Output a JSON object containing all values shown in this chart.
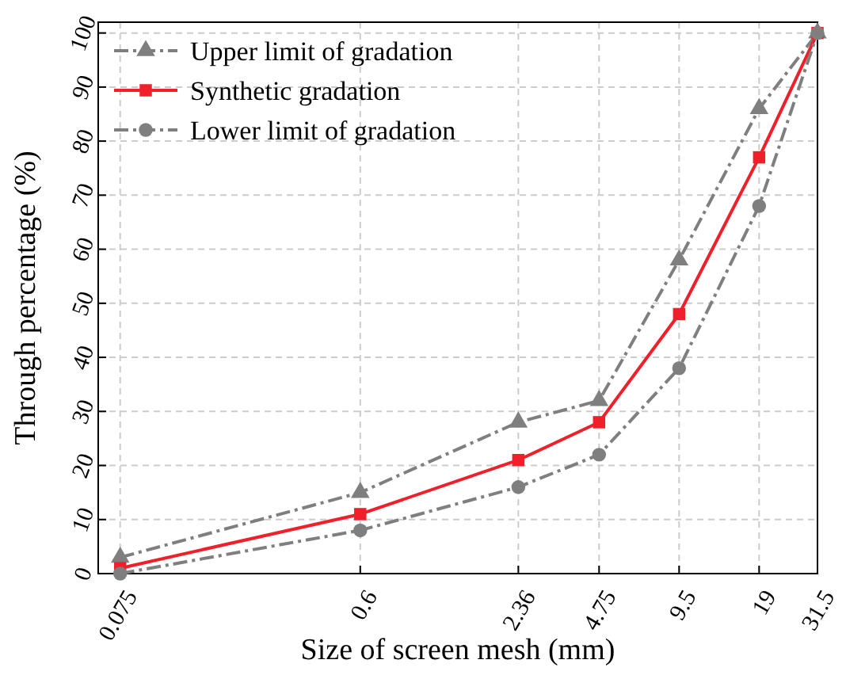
{
  "chart_data": {
    "type": "line",
    "xlabel": "Size of screen mesh (mm)",
    "ylabel": "Through percentage (%)",
    "log": "x",
    "xlim": [
      0.062,
      31.5
    ],
    "xticks": [
      0.075,
      0.6,
      2.36,
      4.75,
      9.5,
      19,
      31.5
    ],
    "ylim": [
      0,
      102
    ],
    "yticks": [
      0,
      10,
      20,
      30,
      40,
      50,
      60,
      70,
      80,
      90,
      100
    ],
    "grid": true,
    "legend": "top left",
    "x": [
      0.075,
      0.6,
      2.36,
      4.75,
      9.5,
      19,
      31.5
    ],
    "series": [
      {
        "name": "Upper limit of gradation",
        "color": "#7f7f7f",
        "marker": "triangle",
        "line_style": "dashdot",
        "values": [
          3,
          15,
          28,
          32,
          58,
          86,
          100
        ]
      },
      {
        "name": "Synthetic gradation",
        "color": "#f0202a",
        "marker": "square",
        "line_style": "solid",
        "values": [
          1,
          11,
          21,
          28,
          48,
          77,
          100
        ]
      },
      {
        "name": "Lower limit of gradation",
        "color": "#7f7f7f",
        "marker": "circle",
        "line_style": "dashdot",
        "values": [
          0,
          8,
          16,
          22,
          38,
          68,
          100
        ]
      }
    ]
  }
}
